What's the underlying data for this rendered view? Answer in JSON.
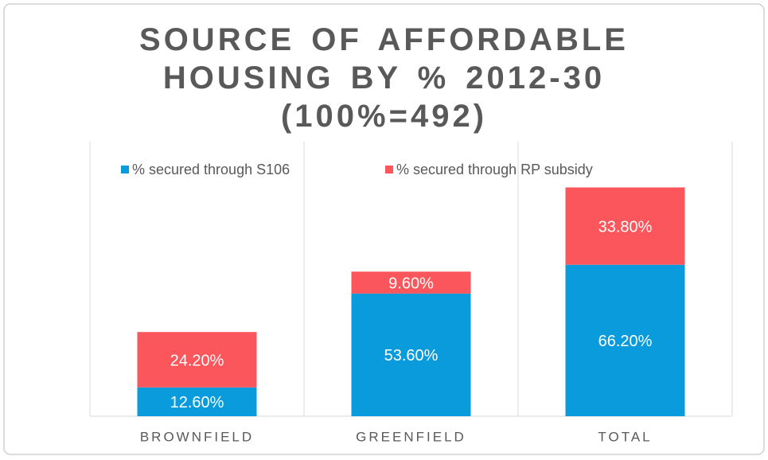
{
  "chart_data": {
    "type": "stacked_bar",
    "title": "SOURCE OF AFFORDABLE HOUSING BY %  2012-30 (100%=492)",
    "categories": [
      "BROWNFIELD",
      "GREENFIELD",
      "TOTAL"
    ],
    "series": [
      {
        "name": "% secured through S106",
        "color": "#0a9bdc",
        "values": [
          12.6,
          53.6,
          66.2
        ],
        "value_labels": [
          "12.60%",
          "53.60%",
          "66.20%"
        ]
      },
      {
        "name": "% secured through RP subsidy",
        "color": "#fb565b",
        "values": [
          24.2,
          9.6,
          33.8
        ],
        "value_labels": [
          "24.20%",
          "9.60%",
          "33.80%"
        ]
      }
    ],
    "ylim": [
      0,
      120
    ],
    "legend": "top"
  }
}
